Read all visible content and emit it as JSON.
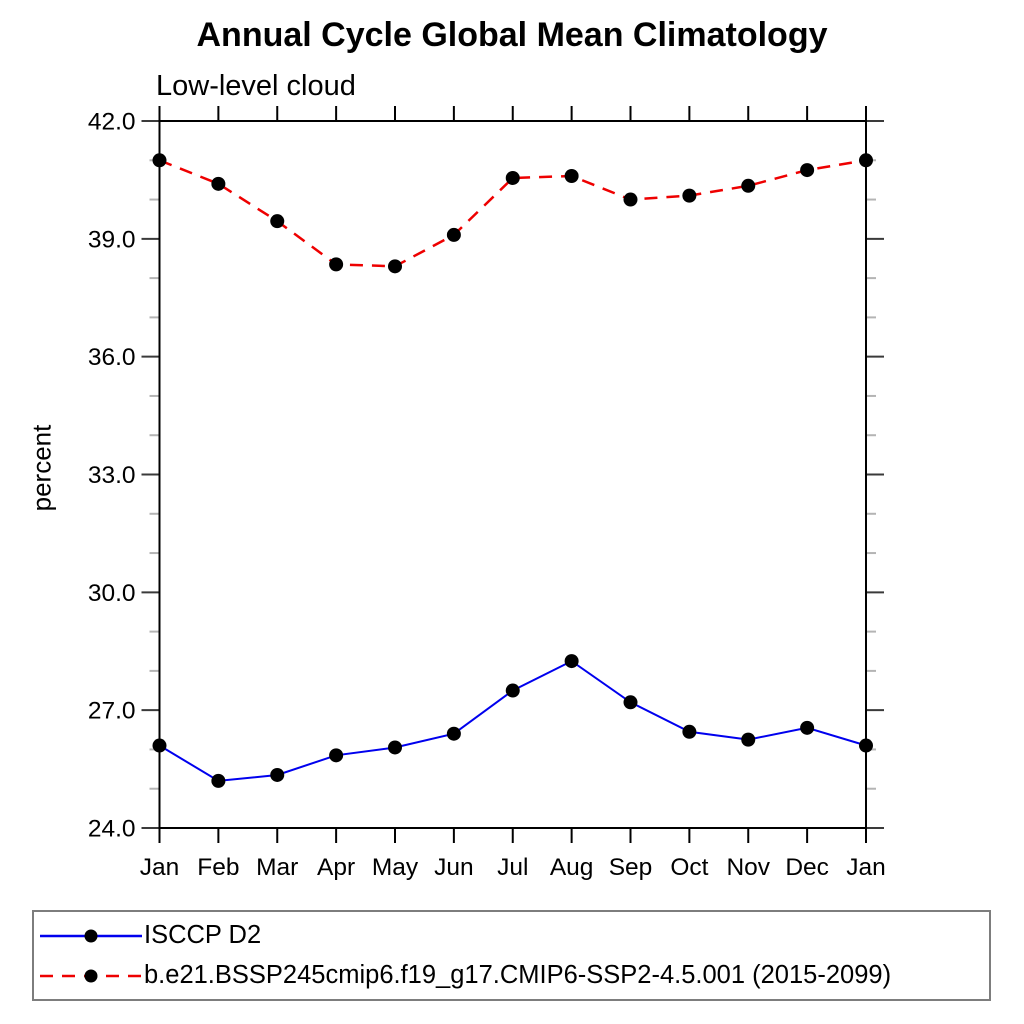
{
  "chart_data": {
    "type": "line",
    "title": "Annual Cycle Global Mean Climatology",
    "subtitle": "Low-level cloud",
    "ylabel": "percent",
    "xlabel": "",
    "categories": [
      "Jan",
      "Feb",
      "Mar",
      "Apr",
      "May",
      "Jun",
      "Jul",
      "Aug",
      "Sep",
      "Oct",
      "Nov",
      "Dec",
      "Jan"
    ],
    "ylim": [
      24.0,
      42.0
    ],
    "ytick_interval": 3.0,
    "yminor_interval": 1.0,
    "ytick_labels": [
      "24.0",
      "27.0",
      "30.0",
      "33.0",
      "36.0",
      "39.0",
      "42.0"
    ],
    "grid": false,
    "legend_position": "bottom-box",
    "series": [
      {
        "name": "ISCCP D2",
        "color": "#0000ee",
        "line_style": "solid",
        "marker": "filled-circle",
        "marker_color": "#000000",
        "values": [
          26.1,
          25.2,
          25.35,
          25.85,
          26.05,
          26.4,
          27.5,
          28.25,
          27.2,
          26.45,
          26.25,
          26.55,
          26.1
        ]
      },
      {
        "name": "b.e21.BSSP245cmip6.f19_g17.CMIP6-SSP2-4.5.001 (2015-2099)",
        "color": "#ee0000",
        "line_style": "dashed",
        "marker": "filled-circle",
        "marker_color": "#000000",
        "values": [
          41.0,
          40.4,
          39.45,
          38.35,
          38.3,
          39.1,
          40.55,
          40.6,
          40.0,
          40.1,
          40.35,
          40.75,
          41.0
        ]
      }
    ],
    "axis_colors": {
      "frame": "#000000",
      "major_tick": "#3a3a3a",
      "minor_tick": "#b4b4b4"
    }
  }
}
